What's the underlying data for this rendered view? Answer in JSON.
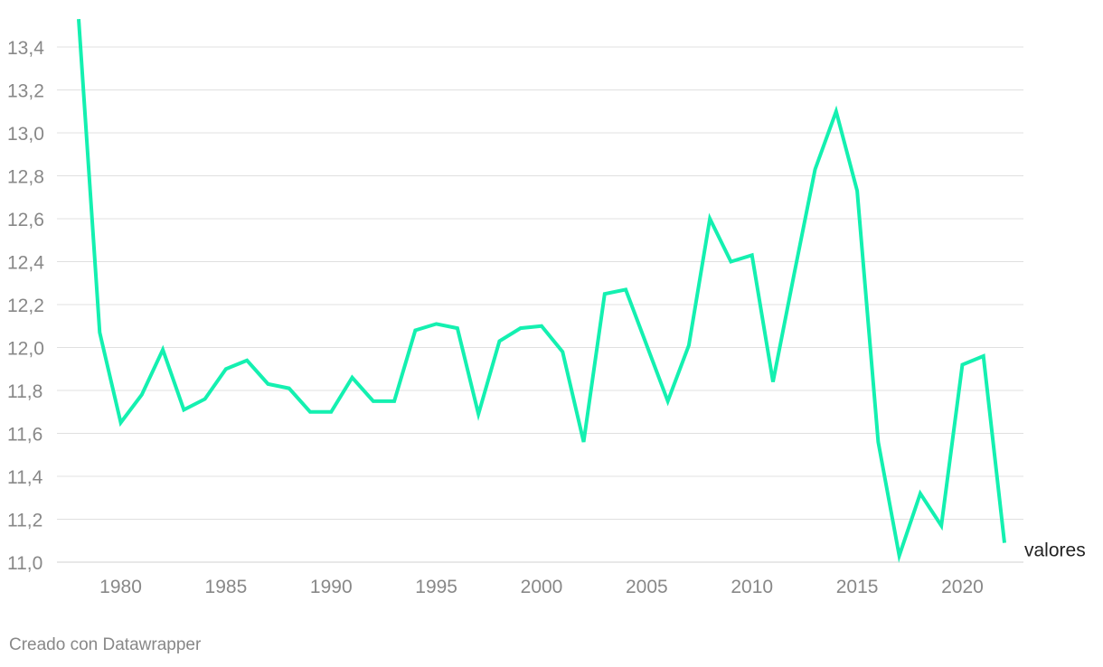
{
  "chart_data": {
    "type": "line",
    "x": [
      1978,
      1979,
      1980,
      1981,
      1982,
      1983,
      1984,
      1985,
      1986,
      1987,
      1988,
      1989,
      1990,
      1991,
      1992,
      1993,
      1994,
      1995,
      1996,
      1997,
      1998,
      1999,
      2000,
      2001,
      2002,
      2003,
      2004,
      2005,
      2006,
      2007,
      2008,
      2009,
      2010,
      2011,
      2012,
      2013,
      2014,
      2015,
      2016,
      2017,
      2018,
      2019,
      2020,
      2021,
      2022
    ],
    "series": [
      {
        "name": "valores",
        "color": "#14f0b0",
        "values": [
          13.53,
          12.07,
          11.65,
          11.78,
          11.99,
          11.71,
          11.76,
          11.9,
          11.94,
          11.83,
          11.81,
          11.7,
          11.7,
          11.86,
          11.75,
          11.75,
          12.08,
          12.11,
          12.09,
          11.69,
          12.03,
          12.09,
          12.1,
          11.98,
          11.56,
          12.25,
          12.27,
          12.01,
          11.75,
          12.01,
          12.6,
          12.4,
          12.43,
          11.84,
          12.34,
          12.83,
          13.1,
          12.73,
          11.56,
          11.03,
          11.32,
          11.17,
          11.92,
          11.96,
          11.09
        ]
      }
    ],
    "y_ticks": [
      "11,0",
      "11,2",
      "11,4",
      "11,6",
      "11,8",
      "12,0",
      "12,2",
      "12,4",
      "12,6",
      "12,8",
      "13,0",
      "13,2",
      "13,4"
    ],
    "y_tick_values": [
      11.0,
      11.2,
      11.4,
      11.6,
      11.8,
      12.0,
      12.2,
      12.4,
      12.6,
      12.8,
      13.0,
      13.2,
      13.4
    ],
    "x_ticks": [
      "1980",
      "1985",
      "1990",
      "1995",
      "2000",
      "2005",
      "2010",
      "2015",
      "2020"
    ],
    "x_tick_values": [
      1980,
      1985,
      1990,
      1995,
      2000,
      2005,
      2010,
      2015,
      2020
    ],
    "xlim": [
      1978,
      2022
    ],
    "ylim": [
      11.0,
      13.4
    ],
    "grid": true,
    "legend": "inline-end"
  },
  "footer": {
    "credit": "Creado con Datawrapper"
  },
  "colors": {
    "line": "#14f0b0",
    "grid": "#e0e0e0",
    "tick_text": "#888888",
    "label_text": "#222222"
  }
}
